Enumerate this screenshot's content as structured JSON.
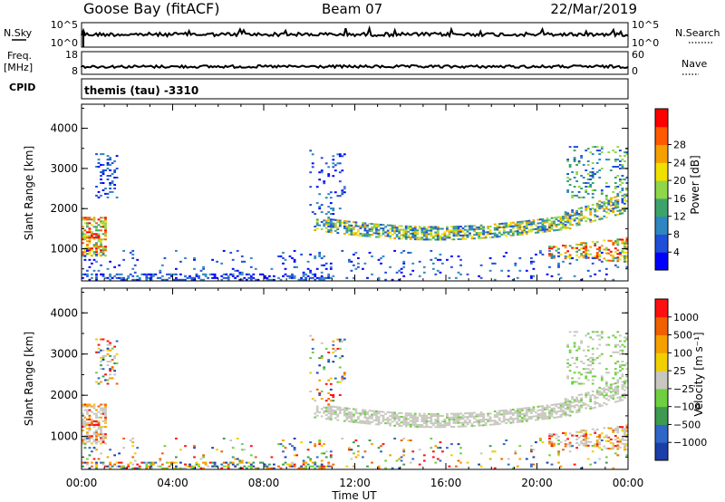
{
  "header": {
    "station": "Goose Bay (fitACF)",
    "beam": "Beam 07",
    "date": "22/Mar/2019"
  },
  "top_panels": {
    "nsky": {
      "label": "N.Sky",
      "tick_top": "10^5",
      "tick_bottom": "10^0"
    },
    "nsearch": {
      "label": "N.Search",
      "tick_top": "10^5",
      "tick_bottom": "10^0"
    },
    "freq": {
      "label_line1": "Freq.",
      "label_line2": "[MHz]",
      "tick_top": "18",
      "tick_bottom": "8"
    },
    "nave": {
      "label": "Nave",
      "tick_top": "60",
      "tick_bottom": "0"
    },
    "cpid": {
      "label": "CPID",
      "value": "themis (tau) -3310"
    }
  },
  "chart_data": [
    {
      "type": "heatmap",
      "panel": "power",
      "ylabel": "Slant Range [km]",
      "yticks": [
        "1000",
        "2000",
        "3000",
        "4000"
      ],
      "ylim": [
        200,
        4600
      ],
      "xlim_hours": [
        0,
        24
      ],
      "colorbar": {
        "label": "Power [dB]",
        "ticks": [
          "4",
          "8",
          "12",
          "16",
          "20",
          "24",
          "28"
        ],
        "colors": [
          "#0000ff",
          "#1f4fd8",
          "#2f86c0",
          "#3da36a",
          "#8fd64a",
          "#f0e000",
          "#f5a000",
          "#ff5a00",
          "#ff0000"
        ]
      }
    },
    {
      "type": "heatmap",
      "panel": "velocity",
      "ylabel": "Slant Range [km]",
      "yticks": [
        "1000",
        "2000",
        "3000",
        "4000"
      ],
      "ylim": [
        200,
        4600
      ],
      "xlim_hours": [
        0,
        24
      ],
      "colorbar": {
        "label": "Velocity [m s⁻¹]",
        "ticks": [
          "1000",
          "500",
          "100",
          "25",
          "−25",
          "−100",
          "−500",
          "−1000"
        ],
        "colors": [
          "#1b3fa8",
          "#2f66c8",
          "#3d9a50",
          "#6ed040",
          "#c8c8c0",
          "#f0d000",
          "#f5a000",
          "#f06000",
          "#ff1010"
        ]
      }
    }
  ],
  "xaxis": {
    "ticks": [
      "00:00",
      "04:00",
      "08:00",
      "12:00",
      "16:00",
      "20:00",
      "00:00"
    ],
    "label": "Time UT"
  }
}
